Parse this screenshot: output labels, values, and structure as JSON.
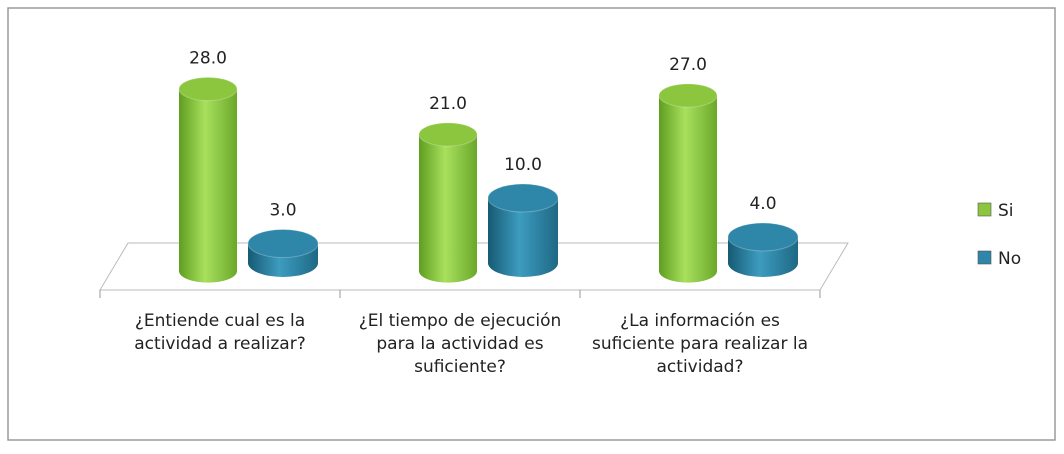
{
  "chart_data": {
    "type": "bar3d",
    "categories": [
      "¿Entiende cual es la actividad a realizar?",
      "¿El tiempo de ejecución para la actividad es suficiente?",
      "¿La información es suficiente para realizar la actividad?"
    ],
    "series": [
      {
        "name": "Si",
        "color": "#8cc63f",
        "values": [
          28,
          21,
          27
        ],
        "value_labels": [
          "28.0",
          "21.0",
          "27.0"
        ]
      },
      {
        "name": "No",
        "color": "#2e86a8",
        "values": [
          3,
          10,
          4
        ],
        "value_labels": [
          "3.0",
          "10.0",
          "4.0"
        ]
      }
    ],
    "legend": "right"
  }
}
